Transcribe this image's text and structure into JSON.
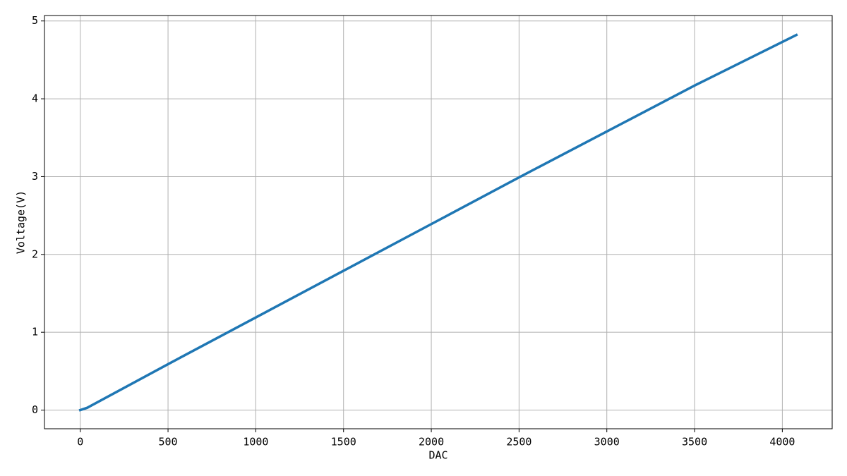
{
  "chart_data": {
    "type": "line",
    "x_label": "DAC",
    "y_label": "Voltage(V)",
    "series": [
      {
        "color": "#1f77b4",
        "x": [
          0,
          40,
          500,
          1000,
          1500,
          2000,
          2500,
          3000,
          3500,
          4080
        ],
        "values": [
          0,
          0.03,
          0.59,
          1.19,
          1.79,
          2.39,
          2.99,
          3.58,
          4.17,
          4.82
        ]
      }
    ],
    "xlim": [
      -204,
      4284
    ],
    "ylim": [
      -0.24,
      5.07
    ],
    "xticks": [
      0,
      500,
      1000,
      1500,
      2000,
      2500,
      3000,
      3500,
      4000
    ],
    "yticks": [
      0,
      1,
      2,
      3,
      4,
      5
    ],
    "grid": true
  }
}
